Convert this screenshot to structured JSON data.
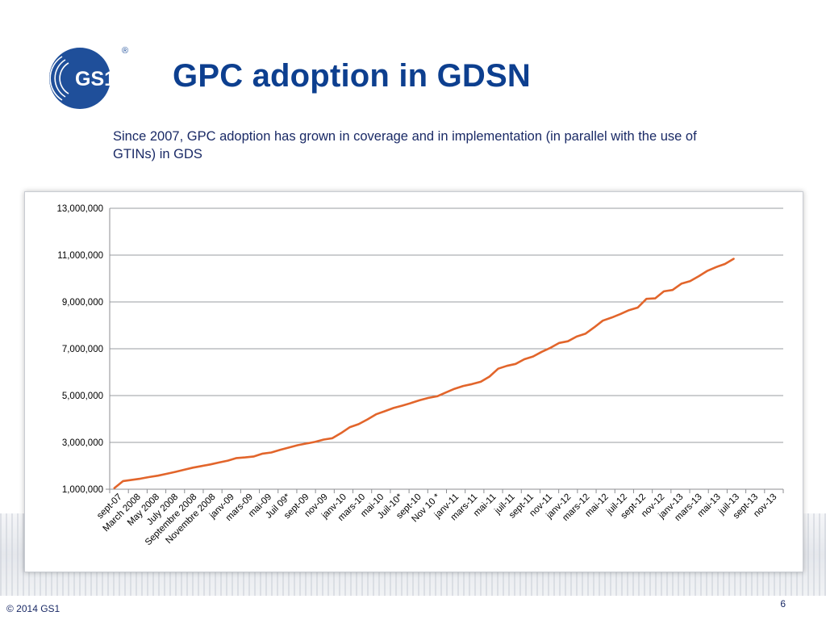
{
  "logo": {
    "text": "GS1",
    "registered": "®"
  },
  "title": "GPC adoption in GDSN",
  "subtitle": "Since 2007, GPC adoption has grown in coverage and in implementation (in parallel with the use of GTINs) in GDS",
  "footer": {
    "copyright": "© 2014 GS1",
    "page_number": "6"
  },
  "colors": {
    "title": "#0d3f8f",
    "series": "#e2652b",
    "grid": "#9a9ca0",
    "logo": "#1f4f9a"
  },
  "chart_data": {
    "type": "line",
    "title": "",
    "xlabel": "",
    "ylabel": "",
    "ylim": [
      1000000,
      13000000
    ],
    "yticks": [
      1000000,
      3000000,
      5000000,
      7000000,
      9000000,
      11000000,
      13000000
    ],
    "ytick_labels": [
      "1,000,000",
      "3,000,000",
      "5,000,000",
      "7,000,000",
      "9,000,000",
      "11,000,000",
      "13,000,000"
    ],
    "grid": true,
    "legend": "none",
    "xtick_labels": [
      "sept-07",
      "March 2008",
      "May 2008",
      "July 2008",
      "Septembre 2008",
      "Novembre 2008",
      "janv-09",
      "mars-09",
      "mai-09",
      "Juil 09*",
      "sept-09",
      "nov-09",
      "janv-10",
      "mars-10",
      "mai-10",
      "Juil-10*",
      "sept-10",
      "Nov 10 *",
      "janv-11",
      "mars-11",
      "mai-11",
      "juil-11",
      "sept-11",
      "nov-11",
      "janv-12",
      "mars-12",
      "mai-12",
      "juil-12",
      "sept-12",
      "nov-12",
      "janv-13",
      "mars-13",
      "mai-13",
      "juil-13",
      "sept-13",
      "nov-13"
    ],
    "series": [
      {
        "color": "#e2652b",
        "values": [
          1050000,
          1350000,
          1400000,
          1450000,
          1520000,
          1580000,
          1660000,
          1740000,
          1830000,
          1920000,
          1990000,
          2060000,
          2140000,
          2220000,
          2330000,
          2360000,
          2400000,
          2520000,
          2570000,
          2680000,
          2780000,
          2880000,
          2950000,
          3020000,
          3120000,
          3180000,
          3400000,
          3650000,
          3780000,
          3980000,
          4200000,
          4330000,
          4470000,
          4570000,
          4680000,
          4800000,
          4900000,
          4970000,
          5130000,
          5290000,
          5410000,
          5490000,
          5590000,
          5810000,
          6150000,
          6270000,
          6350000,
          6550000,
          6670000,
          6870000,
          7040000,
          7250000,
          7320000,
          7520000,
          7640000,
          7910000,
          8200000,
          8330000,
          8480000,
          8650000,
          8760000,
          9130000,
          9150000,
          9450000,
          9510000,
          9780000,
          9890000,
          10100000,
          10330000,
          10490000,
          10620000,
          10840000
        ]
      }
    ]
  }
}
